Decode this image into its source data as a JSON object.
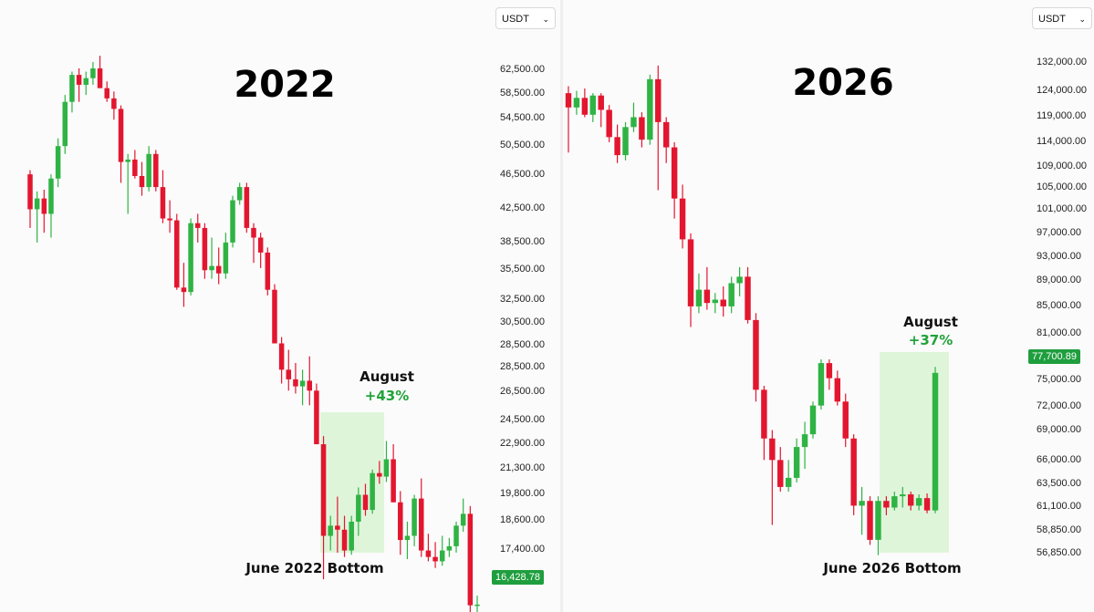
{
  "unit_select": {
    "value": "USDT"
  },
  "chart_data": [
    {
      "type": "candlestick",
      "title": "2022",
      "currency": "USDT",
      "last_price": "16,428.78",
      "y_ticks": [
        "62,500.00",
        "58,500.00",
        "54,500.00",
        "50,500.00",
        "46,500.00",
        "42,500.00",
        "38,500.00",
        "35,500.00",
        "32,500.00",
        "30,500.00",
        "28,500.00",
        "28,500.00",
        "26,500.00",
        "24,500.00",
        "22,900.00",
        "21,300.00",
        "19,800.00",
        "18,600.00",
        "17,400.00"
      ],
      "annotations": {
        "month": "August",
        "change": "+43%",
        "bottom": "June 2022 Bottom"
      },
      "candles": [
        [
          48000,
          48500,
          42000,
          44000
        ],
        [
          44000,
          46000,
          40500,
          45200
        ],
        [
          45200,
          46200,
          41500,
          43500
        ],
        [
          43500,
          48000,
          41000,
          47500
        ],
        [
          47500,
          52500,
          46500,
          51500
        ],
        [
          51500,
          58500,
          50500,
          57500
        ],
        [
          57500,
          62000,
          56000,
          61500
        ],
        [
          61500,
          62500,
          57500,
          60000
        ],
        [
          60000,
          62000,
          58500,
          61000
        ],
        [
          61000,
          63500,
          60000,
          62500
        ],
        [
          62500,
          64500,
          59500,
          59500
        ],
        [
          59500,
          60500,
          57500,
          58000
        ],
        [
          58000,
          59000,
          55000,
          56500
        ],
        [
          56500,
          57000,
          47000,
          49500
        ],
        [
          49500,
          50500,
          43500,
          49800
        ],
        [
          49800,
          51000,
          47500,
          47800
        ],
        [
          47800,
          49500,
          45500,
          46500
        ],
        [
          46500,
          51500,
          46000,
          50500
        ],
        [
          50500,
          51000,
          46000,
          46500
        ],
        [
          46500,
          48500,
          42500,
          43000
        ],
        [
          43000,
          45000,
          41500,
          42800
        ],
        [
          42800,
          43500,
          36000,
          36200
        ],
        [
          36200,
          38500,
          34500,
          35800
        ],
        [
          35800,
          43000,
          35500,
          42500
        ],
        [
          42500,
          43500,
          40500,
          42000
        ],
        [
          42000,
          42500,
          37000,
          37800
        ],
        [
          37800,
          41000,
          37000,
          38200
        ],
        [
          38200,
          40000,
          36500,
          37500
        ],
        [
          37500,
          41500,
          37000,
          40500
        ],
        [
          40500,
          45500,
          40000,
          45000
        ],
        [
          45000,
          47000,
          44500,
          46500
        ],
        [
          46500,
          47000,
          41500,
          42000
        ],
        [
          42000,
          42500,
          38500,
          41000
        ],
        [
          41000,
          41500,
          38000,
          39500
        ],
        [
          39500,
          40000,
          35500,
          36000
        ],
        [
          36000,
          36500,
          31500,
          31500
        ],
        [
          31500,
          32000,
          28500,
          29500
        ],
        [
          29500,
          31000,
          28000,
          28800
        ],
        [
          28800,
          30000,
          27800,
          28300
        ],
        [
          28300,
          29500,
          27000,
          28700
        ],
        [
          28700,
          30500,
          27000,
          28000
        ],
        [
          28000,
          28500,
          24500,
          24500
        ],
        [
          24500,
          25000,
          17500,
          19500
        ],
        [
          19500,
          20500,
          18800,
          20000
        ],
        [
          20000,
          21500,
          18700,
          19800
        ],
        [
          19800,
          20500,
          18500,
          18800
        ],
        [
          18800,
          20500,
          18600,
          20200
        ],
        [
          20200,
          22000,
          19500,
          21600
        ],
        [
          21600,
          22200,
          20500,
          20800
        ],
        [
          20800,
          23000,
          20600,
          22800
        ],
        [
          22800,
          23500,
          22200,
          22600
        ],
        [
          22600,
          24700,
          22300,
          23600
        ],
        [
          23600,
          24500,
          21200,
          21200
        ],
        [
          21200,
          21800,
          18600,
          19300
        ],
        [
          19300,
          20200,
          18400,
          19500
        ],
        [
          19500,
          21600,
          19000,
          21400
        ],
        [
          21400,
          22500,
          18500,
          18800
        ],
        [
          18800,
          19600,
          18300,
          18500
        ],
        [
          18500,
          19200,
          18000,
          18300
        ],
        [
          18300,
          19500,
          18100,
          18800
        ],
        [
          18800,
          19400,
          18500,
          19000
        ],
        [
          19000,
          20200,
          18700,
          20000
        ],
        [
          20000,
          21400,
          19700,
          20600
        ],
        [
          20600,
          21000,
          15800,
          16400
        ],
        [
          16400,
          16800,
          15600,
          16430
        ]
      ]
    },
    {
      "type": "candlestick",
      "title": "2026",
      "currency": "USDT",
      "last_price": "77,700.89",
      "y_ticks": [
        "132,000.00",
        "124,000.00",
        "119,000.00",
        "114,000.00",
        "109,000.00",
        "105,000.00",
        "101,000.00",
        "97,000.00",
        "93,000.00",
        "89,000.00",
        "85,000.00",
        "81,000.00",
        "75,000.00",
        "72,000.00",
        "69,000.00",
        "66,000.00",
        "63,500.00",
        "61,100.00",
        "58,850.00",
        "56,850.00"
      ],
      "annotations": {
        "month": "August",
        "change": "+37%",
        "bottom": "June 2026 Bottom"
      },
      "candles": [
        [
          125000,
          126500,
          113000,
          122000
        ],
        [
          122000,
          125500,
          120500,
          124000
        ],
        [
          124000,
          126000,
          120000,
          120500
        ],
        [
          120500,
          125000,
          119000,
          124500
        ],
        [
          124500,
          125000,
          118000,
          121500
        ],
        [
          121500,
          122500,
          115000,
          116000
        ],
        [
          116000,
          118500,
          111000,
          112500
        ],
        [
          112500,
          119000,
          111500,
          118000
        ],
        [
          118000,
          123000,
          117000,
          120000
        ],
        [
          120000,
          121000,
          114000,
          115500
        ],
        [
          115500,
          129000,
          114500,
          128000
        ],
        [
          128000,
          131000,
          106000,
          119000
        ],
        [
          119000,
          120000,
          111000,
          114000
        ],
        [
          114000,
          115000,
          101000,
          104500
        ],
        [
          104500,
          107000,
          96000,
          97500
        ],
        [
          97500,
          98500,
          84000,
          87000
        ],
        [
          87000,
          92000,
          86000,
          89500
        ],
        [
          89500,
          93000,
          86500,
          87500
        ],
        [
          87500,
          89000,
          86000,
          88000
        ],
        [
          88000,
          90000,
          85500,
          87000
        ],
        [
          87000,
          91500,
          86000,
          90500
        ],
        [
          90500,
          93000,
          88500,
          91500
        ],
        [
          91500,
          93000,
          84500,
          85000
        ],
        [
          85000,
          86000,
          74000,
          75500
        ],
        [
          75500,
          76000,
          67000,
          69500
        ],
        [
          69500,
          70500,
          60000,
          67000
        ],
        [
          67000,
          68500,
          63500,
          64000
        ],
        [
          64000,
          67000,
          63500,
          65000
        ],
        [
          65000,
          69500,
          64500,
          68500
        ],
        [
          68500,
          71500,
          66000,
          70000
        ],
        [
          70000,
          74000,
          69500,
          73500
        ],
        [
          73500,
          79500,
          73000,
          79000
        ],
        [
          79000,
          79500,
          75500,
          77000
        ],
        [
          77000,
          78000,
          73500,
          74000
        ],
        [
          74000,
          75000,
          68500,
          69500
        ],
        [
          69500,
          70000,
          61000,
          62000
        ],
        [
          62000,
          64000,
          59000,
          62500
        ],
        [
          62500,
          63000,
          58000,
          58500
        ],
        [
          58500,
          63000,
          57000,
          62500
        ],
        [
          62500,
          63000,
          61000,
          61800
        ],
        [
          61800,
          63500,
          61500,
          63000
        ],
        [
          63000,
          64000,
          61800,
          63200
        ],
        [
          63200,
          63500,
          61500,
          62000
        ],
        [
          62000,
          63200,
          61500,
          62800
        ],
        [
          62800,
          63300,
          61200,
          61500
        ],
        [
          61500,
          78500,
          61200,
          77700
        ]
      ]
    }
  ]
}
